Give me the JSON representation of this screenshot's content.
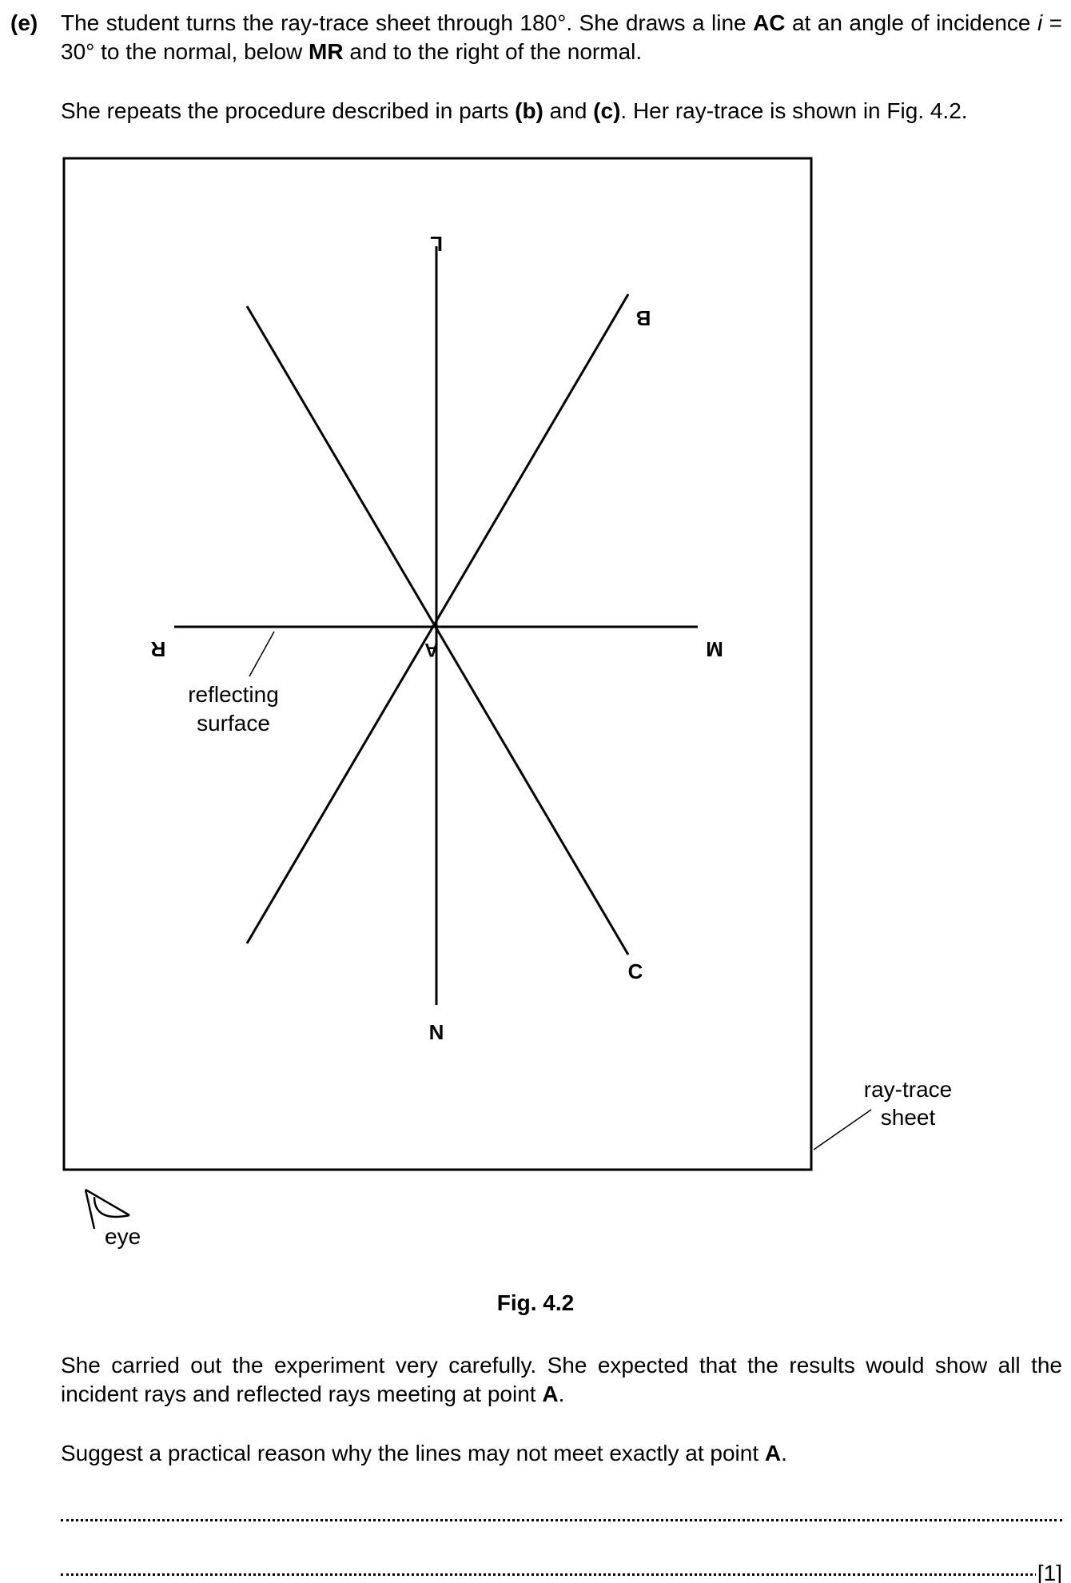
{
  "question": {
    "part_label": "(e)",
    "intro_line1_a": "The student turns the ray-trace sheet through 180°. She draws a line ",
    "intro_line1_b": "AC",
    "intro_line1_c": " at an angle of incidence ",
    "intro_i": "i",
    "intro_line1_d": " = 30° to the normal, below ",
    "intro_line1_e": "MR",
    "intro_line1_f": " and to the right of the normal.",
    "repeat_a": "She repeats the procedure described in parts ",
    "repeat_b": "(b)",
    "repeat_c": " and ",
    "repeat_d": "(c)",
    "repeat_e": ". Her ray-trace is shown in Fig. 4.2."
  },
  "figure": {
    "caption": "Fig. 4.2",
    "labels": {
      "L": "L",
      "B": "B",
      "R": "R",
      "M": "M",
      "A": "A",
      "C": "C",
      "N": "N",
      "reflecting_1": "reflecting",
      "reflecting_2": "surface",
      "sheet_1": "ray-trace",
      "sheet_2": "sheet",
      "eye": "eye"
    }
  },
  "follow_up": {
    "expect_a": "She carried out the experiment very carefully. She expected that the results would show all the incident rays and reflected rays meeting at point ",
    "expect_b": "A",
    "expect_c": ".",
    "suggest_a": "Suggest a practical reason why the lines may not meet exactly at point ",
    "suggest_b": "A",
    "suggest_c": ".",
    "mark": "[1]"
  }
}
